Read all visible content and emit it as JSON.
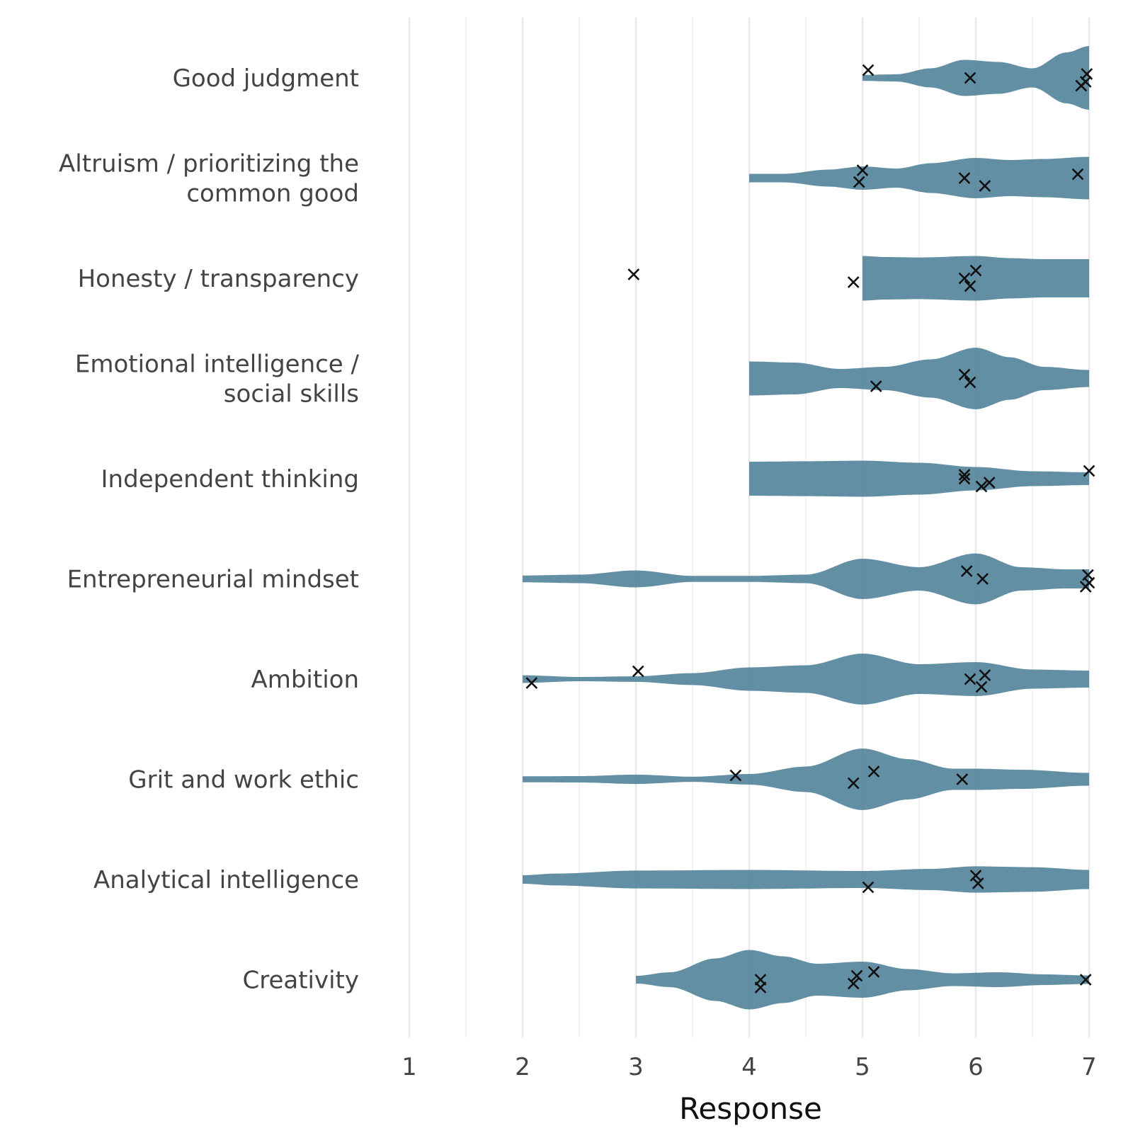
{
  "chart_data": {
    "type": "violin",
    "title": "",
    "xlabel": "Response",
    "ylabel": "",
    "xlim": [
      1,
      7
    ],
    "xticks": [
      1,
      2,
      3,
      4,
      5,
      6,
      7
    ],
    "grid": true,
    "fill_color": "#4d8099",
    "marker_color": "#111111",
    "categories": [
      {
        "label_lines": [
          "Good judgment"
        ],
        "values": [
          5.05,
          5.95,
          6.93,
          6.98,
          6.97
        ],
        "density": [
          [
            5,
            0.14
          ],
          [
            5.3,
            0.17
          ],
          [
            5.6,
            0.45
          ],
          [
            5.9,
            0.85
          ],
          [
            6.2,
            0.75
          ],
          [
            6.5,
            0.45
          ],
          [
            6.8,
            1.2
          ],
          [
            7,
            1.5
          ]
        ]
      },
      {
        "label_lines": [
          "Altruism / prioritizing the",
          "common good"
        ],
        "values": [
          4.97,
          5.0,
          5.9,
          6.08,
          6.9
        ],
        "density": [
          [
            4,
            0.2
          ],
          [
            4.3,
            0.2
          ],
          [
            4.7,
            0.4
          ],
          [
            5,
            0.55
          ],
          [
            5.3,
            0.45
          ],
          [
            5.6,
            0.7
          ],
          [
            6,
            0.95
          ],
          [
            6.3,
            0.85
          ],
          [
            6.6,
            0.9
          ],
          [
            7,
            1.0
          ]
        ]
      },
      {
        "label_lines": [
          "Honesty / transparency"
        ],
        "values": [
          2.98,
          4.92,
          6.0,
          5.9,
          5.95
        ],
        "density": [
          [
            5,
            1.05
          ],
          [
            5.2,
            1.0
          ],
          [
            5.5,
            0.98
          ],
          [
            6,
            1.05
          ],
          [
            6.3,
            0.95
          ],
          [
            6.6,
            0.9
          ],
          [
            7,
            0.9
          ]
        ]
      },
      {
        "label_lines": [
          "Emotional intelligence /",
          "social skills"
        ],
        "values": [
          5.12,
          5.9,
          5.95
        ],
        "density": [
          [
            4,
            0.8
          ],
          [
            4.4,
            0.75
          ],
          [
            4.8,
            0.45
          ],
          [
            5.2,
            0.55
          ],
          [
            5.6,
            0.9
          ],
          [
            6,
            1.45
          ],
          [
            6.3,
            1.0
          ],
          [
            6.6,
            0.55
          ],
          [
            7,
            0.4
          ]
        ]
      },
      {
        "label_lines": [
          "Independent thinking"
        ],
        "values": [
          5.9,
          6.05,
          5.9,
          6.12,
          7.0
        ],
        "density": [
          [
            4,
            0.8
          ],
          [
            4.5,
            0.82
          ],
          [
            5,
            0.85
          ],
          [
            5.5,
            0.75
          ],
          [
            6,
            0.55
          ],
          [
            6.5,
            0.35
          ],
          [
            7,
            0.3
          ]
        ]
      },
      {
        "label_lines": [
          "Entrepreneurial mindset"
        ],
        "values": [
          5.92,
          6.06,
          6.97,
          6.99,
          7.0
        ],
        "density": [
          [
            2,
            0.16
          ],
          [
            2.5,
            0.2
          ],
          [
            3,
            0.4
          ],
          [
            3.5,
            0.14
          ],
          [
            4,
            0.14
          ],
          [
            4.5,
            0.2
          ],
          [
            5,
            0.95
          ],
          [
            5.5,
            0.55
          ],
          [
            6,
            1.2
          ],
          [
            6.4,
            0.55
          ],
          [
            6.8,
            0.45
          ],
          [
            7,
            0.45
          ]
        ]
      },
      {
        "label_lines": [
          "Ambition"
        ],
        "values": [
          2.08,
          3.02,
          5.95,
          6.05,
          6.08
        ],
        "density": [
          [
            2,
            0.18
          ],
          [
            2.5,
            0.1
          ],
          [
            3,
            0.13
          ],
          [
            3.5,
            0.28
          ],
          [
            4,
            0.55
          ],
          [
            4.5,
            0.65
          ],
          [
            5,
            1.2
          ],
          [
            5.5,
            0.7
          ],
          [
            6,
            0.8
          ],
          [
            6.5,
            0.45
          ],
          [
            7,
            0.4
          ]
        ]
      },
      {
        "label_lines": [
          "Grit and work ethic"
        ],
        "values": [
          3.88,
          4.92,
          5.1,
          5.88
        ],
        "density": [
          [
            2,
            0.14
          ],
          [
            2.5,
            0.15
          ],
          [
            3,
            0.22
          ],
          [
            3.5,
            0.12
          ],
          [
            4,
            0.25
          ],
          [
            4.5,
            0.6
          ],
          [
            5,
            1.45
          ],
          [
            5.4,
            0.95
          ],
          [
            5.8,
            0.5
          ],
          [
            6,
            0.5
          ],
          [
            6.4,
            0.45
          ],
          [
            7,
            0.3
          ]
        ]
      },
      {
        "label_lines": [
          "Analytical intelligence"
        ],
        "values": [
          5.05,
          6.0,
          6.02
        ],
        "density": [
          [
            2,
            0.2
          ],
          [
            2.3,
            0.28
          ],
          [
            3,
            0.42
          ],
          [
            4,
            0.45
          ],
          [
            5,
            0.4
          ],
          [
            5.6,
            0.5
          ],
          [
            6,
            0.62
          ],
          [
            6.5,
            0.58
          ],
          [
            7,
            0.45
          ]
        ]
      },
      {
        "label_lines": [
          "Creativity"
        ],
        "values": [
          4.1,
          4.1,
          4.95,
          4.92,
          5.1,
          6.97
        ],
        "density": [
          [
            3,
            0.18
          ],
          [
            3.3,
            0.35
          ],
          [
            3.7,
            1.0
          ],
          [
            4,
            1.4
          ],
          [
            4.3,
            1.1
          ],
          [
            4.6,
            0.75
          ],
          [
            5,
            0.85
          ],
          [
            5.4,
            0.5
          ],
          [
            5.8,
            0.3
          ],
          [
            6.2,
            0.35
          ],
          [
            6.6,
            0.25
          ],
          [
            7,
            0.2
          ]
        ]
      }
    ]
  }
}
